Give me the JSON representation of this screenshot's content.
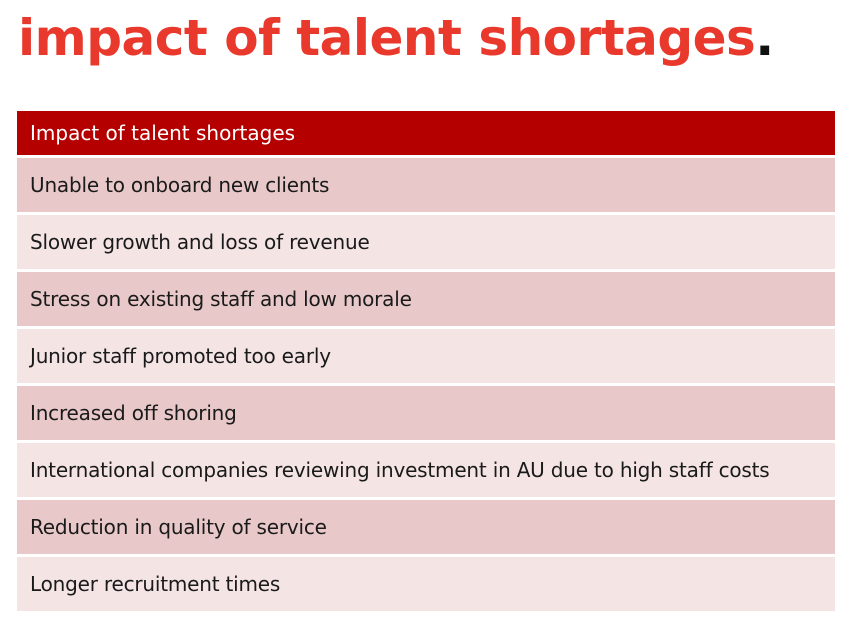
{
  "heading": {
    "text": "impact of talent shortages",
    "period": "."
  },
  "table": {
    "header": "Impact of talent shortages",
    "rows": [
      "Unable to onboard new clients",
      "Slower growth and loss of revenue",
      "Stress on existing staff and low morale",
      "Junior staff promoted too early",
      "Increased off shoring",
      "International companies reviewing investment in AU due to high staff costs",
      "Reduction in quality of service",
      "Longer recruitment times"
    ]
  },
  "colors": {
    "accent": "#e8392c",
    "header_bg": "#b50000",
    "row_odd": "#e8c8c8",
    "row_even": "#f4e4e4"
  }
}
